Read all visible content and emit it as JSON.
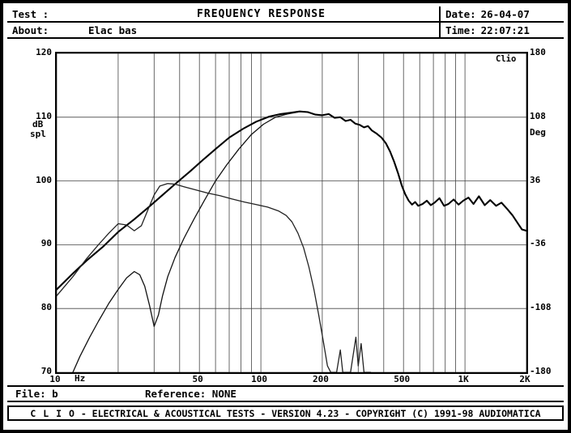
{
  "header": {
    "test_label": "Test :",
    "title": "FREQUENCY RESPONSE",
    "date_label": "Date:",
    "date_value": "26-04-07",
    "about_label": "About:",
    "about_value": "Elac bas",
    "time_label": "Time:",
    "time_value": "22:07:21"
  },
  "status_bar": {
    "file_label": "File:",
    "file_value": "b",
    "reference_label": "Reference:",
    "reference_value": "NONE"
  },
  "footer": {
    "brand": "C L I O",
    "text": " - ELECTRICAL & ACOUSTICAL TESTS - VERSION 4.23 - COPYRIGHT (C) 1991-98 AUDIOMATICA"
  },
  "chart_data": {
    "type": "line",
    "title": "FREQUENCY RESPONSE",
    "watermark": "Clio",
    "grid": "log-major",
    "legend": "none",
    "x_axis": {
      "scale": "log",
      "min": 10,
      "max": 2000,
      "unit": "Hz",
      "tick_labels": [
        {
          "f": 10,
          "label": "10"
        },
        {
          "f": 50,
          "label": "50"
        },
        {
          "f": 100,
          "label": "100"
        },
        {
          "f": 200,
          "label": "200"
        },
        {
          "f": 500,
          "label": "500"
        },
        {
          "f": 1000,
          "label": "1K"
        },
        {
          "f": 2000,
          "label": "2K"
        }
      ]
    },
    "y_axis_left": {
      "unit_line1": "dB",
      "unit_line2": "spl",
      "min": 70,
      "max": 120,
      "ticks": [
        120,
        110,
        100,
        90,
        80,
        70
      ]
    },
    "y_axis_right": {
      "label": "Deg",
      "min": -180,
      "max": 180,
      "ticks": [
        180,
        108,
        36,
        -36,
        -108,
        -180
      ]
    },
    "series": [
      {
        "name": "curve_1",
        "color": "#000000",
        "points": [
          [
            10,
            83
          ],
          [
            12,
            85.5
          ],
          [
            14,
            87.5
          ],
          [
            17,
            89.8
          ],
          [
            20,
            92
          ],
          [
            24,
            94
          ],
          [
            28,
            95.8
          ],
          [
            33,
            97.8
          ],
          [
            38,
            99.5
          ],
          [
            45,
            101.5
          ],
          [
            52,
            103.3
          ],
          [
            60,
            105
          ],
          [
            70,
            106.8
          ],
          [
            82,
            108.2
          ],
          [
            95,
            109.3
          ],
          [
            110,
            110.1
          ],
          [
            125,
            110.5
          ],
          [
            140,
            110.7
          ],
          [
            155,
            110.9
          ],
          [
            170,
            110.8
          ],
          [
            185,
            110.4
          ],
          [
            200,
            110.3
          ],
          [
            215,
            110.5
          ],
          [
            230,
            109.9
          ],
          [
            245,
            110.0
          ],
          [
            260,
            109.4
          ],
          [
            275,
            109.6
          ],
          [
            290,
            109.0
          ],
          [
            305,
            108.8
          ],
          [
            320,
            108.4
          ],
          [
            335,
            108.6
          ],
          [
            350,
            107.9
          ],
          [
            370,
            107.4
          ],
          [
            390,
            106.8
          ],
          [
            410,
            105.9
          ],
          [
            430,
            104.6
          ],
          [
            450,
            103.0
          ],
          [
            470,
            101.2
          ],
          [
            490,
            99.3
          ],
          [
            510,
            97.9
          ],
          [
            530,
            96.9
          ],
          [
            550,
            96.3
          ],
          [
            570,
            96.7
          ],
          [
            590,
            96.1
          ],
          [
            620,
            96.4
          ],
          [
            650,
            96.9
          ],
          [
            680,
            96.2
          ],
          [
            710,
            96.6
          ],
          [
            750,
            97.3
          ],
          [
            790,
            96.1
          ],
          [
            830,
            96.4
          ],
          [
            880,
            97.1
          ],
          [
            930,
            96.3
          ],
          [
            980,
            96.9
          ],
          [
            1040,
            97.4
          ],
          [
            1100,
            96.4
          ],
          [
            1170,
            97.6
          ],
          [
            1250,
            96.2
          ],
          [
            1330,
            97.0
          ],
          [
            1420,
            96.1
          ],
          [
            1510,
            96.6
          ],
          [
            1610,
            95.6
          ],
          [
            1710,
            94.6
          ],
          [
            1810,
            93.4
          ],
          [
            1900,
            92.4
          ],
          [
            2000,
            92.2
          ]
        ]
      },
      {
        "name": "curve_2",
        "color": "#111111",
        "points": [
          [
            12,
            70
          ],
          [
            13,
            72.5
          ],
          [
            14.5,
            75.5
          ],
          [
            16,
            78
          ],
          [
            18,
            80.8
          ],
          [
            20,
            83
          ],
          [
            22,
            84.8
          ],
          [
            24,
            85.8
          ],
          [
            25.5,
            85.3
          ],
          [
            27,
            83.5
          ],
          [
            28.5,
            80.5
          ],
          [
            30,
            77.2
          ],
          [
            31.5,
            79
          ],
          [
            33,
            82
          ],
          [
            35,
            85
          ],
          [
            38,
            88
          ],
          [
            42,
            91
          ],
          [
            47,
            94
          ],
          [
            53,
            97
          ],
          [
            60,
            100
          ],
          [
            68,
            102.5
          ],
          [
            78,
            105
          ],
          [
            90,
            107.3
          ],
          [
            103,
            108.9
          ],
          [
            118,
            110
          ],
          [
            135,
            110.5
          ],
          [
            152,
            110.8
          ]
        ]
      },
      {
        "name": "curve_3",
        "color": "#222222",
        "points": [
          [
            10,
            82
          ],
          [
            12,
            85
          ],
          [
            14,
            87.8
          ],
          [
            16,
            90
          ],
          [
            18,
            91.8
          ],
          [
            20,
            93.3
          ],
          [
            22,
            93.1
          ],
          [
            24,
            92.2
          ],
          [
            26,
            93
          ],
          [
            28,
            95.5
          ],
          [
            30,
            97.8
          ],
          [
            32,
            99.2
          ],
          [
            35,
            99.6
          ],
          [
            38,
            99.5
          ],
          [
            42,
            99.1
          ],
          [
            48,
            98.6
          ],
          [
            55,
            98.1
          ],
          [
            63,
            97.7
          ],
          [
            72,
            97.2
          ],
          [
            83,
            96.7
          ],
          [
            95,
            96.3
          ],
          [
            108,
            95.9
          ],
          [
            122,
            95.3
          ],
          [
            133,
            94.6
          ],
          [
            142,
            93.6
          ],
          [
            152,
            91.8
          ],
          [
            162,
            89.5
          ],
          [
            172,
            86.5
          ],
          [
            182,
            83
          ],
          [
            192,
            79
          ],
          [
            202,
            75
          ],
          [
            212,
            71
          ],
          [
            220,
            70
          ],
          [
            235,
            70
          ],
          [
            245,
            73.5
          ],
          [
            252,
            70
          ],
          [
            275,
            70
          ],
          [
            292,
            75.5
          ],
          [
            300,
            71
          ],
          [
            310,
            74.5
          ],
          [
            320,
            70
          ],
          [
            345,
            70
          ]
        ]
      }
    ]
  }
}
